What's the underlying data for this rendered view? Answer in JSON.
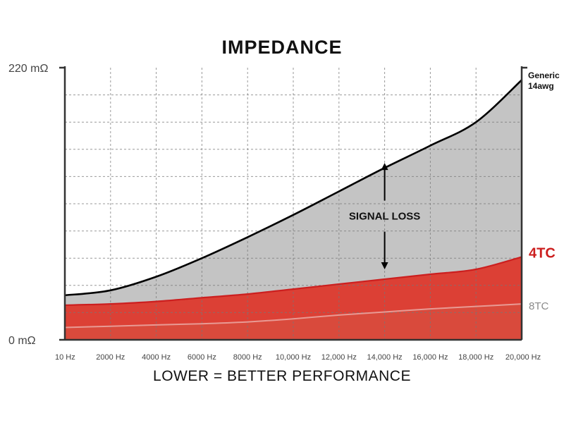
{
  "chart_data": {
    "type": "area",
    "title": "IMPEDANCE",
    "xlabel": "LOWER = BETTER PERFORMANCE",
    "ylabel": "",
    "x_ticks": [
      "10 Hz",
      "2000 Hz",
      "4000 Hz",
      "6000 Hz",
      "8000 Hz",
      "10,000 Hz",
      "12,000 Hz",
      "14,000 Hz",
      "16,000 Hz",
      "18,000 Hz",
      "20,000 Hz"
    ],
    "y_ticks": [
      "0 mΩ",
      "220 mΩ"
    ],
    "xlim": [
      0,
      20000
    ],
    "ylim": [
      0,
      220
    ],
    "grid": true,
    "x": [
      10,
      2000,
      4000,
      6000,
      8000,
      10000,
      12000,
      14000,
      16000,
      18000,
      20000
    ],
    "series": [
      {
        "name_lines": [
          "Generic",
          "14awg"
        ],
        "color": "#000000",
        "fill": "#c4c4c4",
        "values": [
          36,
          40,
          51,
          66,
          83,
          101,
          120,
          139,
          157,
          176,
          210
        ]
      },
      {
        "name": "4TC",
        "color": "#cc1f1f",
        "fill": "#dc4035",
        "values": [
          28,
          29,
          31,
          34,
          37,
          41,
          45,
          49,
          53,
          57,
          67
        ]
      },
      {
        "name": "8TC",
        "color": "#e89a94",
        "fill": "#d94a3c",
        "values": [
          10,
          11,
          12,
          13,
          14.5,
          17,
          20,
          22.5,
          25,
          27,
          29
        ]
      }
    ],
    "annotations": [
      {
        "text": "SIGNAL LOSS",
        "x": 14000,
        "arrow_from": 143,
        "arrow_to": 57
      }
    ]
  },
  "colors": {
    "frame": "#333333",
    "grid": "#777777",
    "label_4tc": "#cc1f1f",
    "label_8tc": "#8a8a8a"
  }
}
